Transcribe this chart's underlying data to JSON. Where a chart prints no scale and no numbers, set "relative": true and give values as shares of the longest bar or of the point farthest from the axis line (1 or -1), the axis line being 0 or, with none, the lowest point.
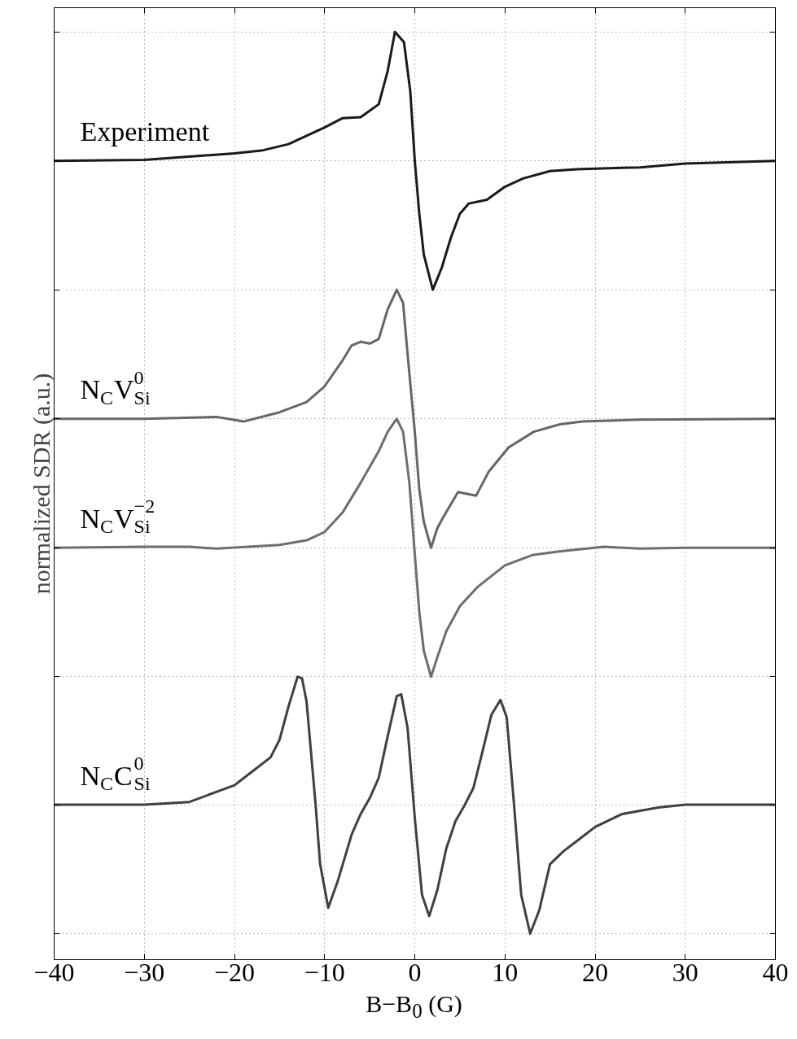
{
  "chart_data": {
    "type": "line",
    "relative": true,
    "grid": true,
    "xlabel": "B−B$_{0}$ (G)",
    "ylabel": "normalized SDR (a.u.)",
    "xlim": [
      -40,
      40
    ],
    "xticks": [
      {
        "value": -40,
        "label": "−40"
      },
      {
        "value": -30,
        "label": "−30"
      },
      {
        "value": -20,
        "label": "−20"
      },
      {
        "value": -10,
        "label": "−10"
      },
      0,
      10,
      20,
      30,
      40
    ],
    "series": [
      {
        "name": "Experiment",
        "color": "#1a1a1a",
        "x": [
          -40,
          -30,
          -20,
          -17,
          -14,
          -10,
          -8,
          -6,
          -4,
          -3,
          -2.2,
          -1.2,
          -0.5,
          0,
          0.5,
          1,
          2,
          3,
          4,
          5,
          6,
          8,
          10,
          12,
          15,
          18,
          25,
          30,
          40
        ],
        "values": [
          0.861,
          0.862,
          0.869,
          0.872,
          0.879,
          0.897,
          0.907,
          0.908,
          0.922,
          0.958,
          1.0,
          0.989,
          0.936,
          0.861,
          0.804,
          0.76,
          0.722,
          0.746,
          0.778,
          0.804,
          0.815,
          0.819,
          0.833,
          0.842,
          0.85,
          0.852,
          0.854,
          0.858,
          0.861
        ]
      },
      {
        "name": "N$_{C}$V$^{0}$$_{Si}$",
        "color": "#666666",
        "x": [
          -40,
          -30,
          -22,
          -19,
          -15,
          -12,
          -10,
          -8,
          -7,
          -6,
          -5,
          -4,
          -3,
          -2,
          -1.3,
          -0.8,
          0,
          0.5,
          1,
          1.8,
          2.5,
          3.1,
          4.8,
          6.8,
          8.2,
          10.4,
          13.2,
          16.1,
          18.6,
          25,
          40
        ],
        "values": [
          0.583,
          0.583,
          0.585,
          0.58,
          0.59,
          0.601,
          0.618,
          0.646,
          0.662,
          0.666,
          0.664,
          0.669,
          0.701,
          0.722,
          0.708,
          0.653,
          0.569,
          0.507,
          0.472,
          0.444,
          0.465,
          0.476,
          0.504,
          0.5,
          0.526,
          0.552,
          0.569,
          0.577,
          0.58,
          0.582,
          0.583
        ]
      },
      {
        "name": "N$_{C}$V$^{−2}$$_{Si}$",
        "color": "#6e6e6e",
        "x": [
          -40,
          -30,
          -25,
          -22,
          -15,
          -12,
          -10,
          -8,
          -6,
          -4,
          -3,
          -2,
          -1.3,
          -0.6,
          0,
          0.5,
          1,
          1.8,
          2.5,
          3.5,
          5,
          7,
          10,
          13,
          16,
          21,
          25,
          30,
          40
        ],
        "values": [
          0.444,
          0.445,
          0.445,
          0.443,
          0.447,
          0.452,
          0.461,
          0.482,
          0.514,
          0.548,
          0.569,
          0.583,
          0.569,
          0.514,
          0.437,
          0.375,
          0.333,
          0.305,
          0.326,
          0.354,
          0.381,
          0.402,
          0.425,
          0.436,
          0.44,
          0.445,
          0.443,
          0.444,
          0.444
        ]
      },
      {
        "name": "N$_{C}$C$^{0}$$_{Si}$",
        "color": "#404040",
        "x": [
          -40,
          -30,
          -25,
          -20,
          -18,
          -16,
          -15,
          -14,
          -13,
          -12.5,
          -12,
          -11,
          -10.5,
          -9.6,
          -8.5,
          -7,
          -6,
          -5,
          -4,
          -3,
          -2,
          -1.5,
          -0.8,
          0,
          0.8,
          1.6,
          2.5,
          3.5,
          4.5,
          5.5,
          6.5,
          7.5,
          8.5,
          9.5,
          10.2,
          11,
          11.8,
          12.8,
          13.8,
          15,
          16.5,
          18,
          20,
          23,
          27,
          30,
          40
        ],
        "values": [
          0.167,
          0.167,
          0.17,
          0.188,
          0.203,
          0.218,
          0.237,
          0.273,
          0.305,
          0.303,
          0.278,
          0.167,
          0.103,
          0.056,
          0.086,
          0.135,
          0.157,
          0.174,
          0.196,
          0.241,
          0.284,
          0.286,
          0.25,
          0.153,
          0.07,
          0.047,
          0.075,
          0.12,
          0.149,
          0.166,
          0.185,
          0.224,
          0.264,
          0.28,
          0.261,
          0.168,
          0.07,
          0.028,
          0.053,
          0.103,
          0.117,
          0.128,
          0.143,
          0.157,
          0.164,
          0.167,
          0.167
        ]
      }
    ]
  }
}
